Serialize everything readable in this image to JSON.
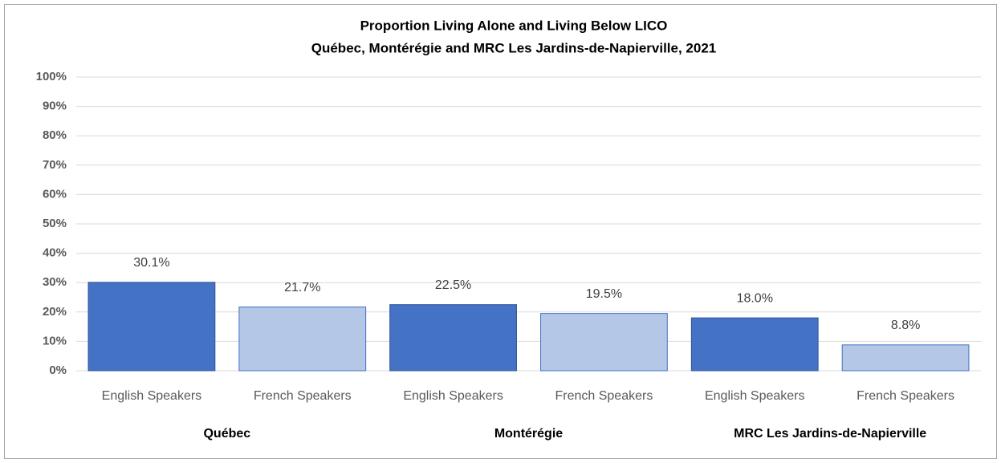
{
  "chart_data": {
    "type": "bar",
    "title": "Proportion Living Alone and Living Below LICO",
    "subtitle": "Québec, Montérégie and MRC Les Jardins-de-Napierville,  2021",
    "colors": [
      "#4472c4",
      "#b4c7e7"
    ],
    "groups": [
      {
        "name": "Québec",
        "categories": [
          "English Speakers",
          "French Speakers"
        ],
        "values": [
          30.1,
          21.7
        ],
        "value_labels": [
          "30.1%",
          "21.7%"
        ]
      },
      {
        "name": "Montérégie",
        "categories": [
          "English Speakers",
          "French Speakers"
        ],
        "values": [
          22.5,
          19.5
        ],
        "value_labels": [
          "22.5%",
          "19.5%"
        ]
      },
      {
        "name": "MRC Les Jardins-de-Napierville",
        "categories": [
          "English Speakers",
          "French Speakers"
        ],
        "values": [
          18.0,
          8.8
        ],
        "value_labels": [
          "18.0%",
          "8.8%"
        ]
      }
    ],
    "ylim": [
      0,
      100
    ],
    "yticks": [
      {
        "value": 0,
        "label": "0%"
      },
      {
        "value": 10,
        "label": "10%"
      },
      {
        "value": 20,
        "label": "20%"
      },
      {
        "value": 30,
        "label": "30%"
      },
      {
        "value": 40,
        "label": "40%"
      },
      {
        "value": 50,
        "label": "50%"
      },
      {
        "value": 60,
        "label": "60%"
      },
      {
        "value": 70,
        "label": "70%"
      },
      {
        "value": 80,
        "label": "80%"
      },
      {
        "value": 90,
        "label": "90%"
      },
      {
        "value": 100,
        "label": "100%"
      }
    ],
    "grid": true
  }
}
